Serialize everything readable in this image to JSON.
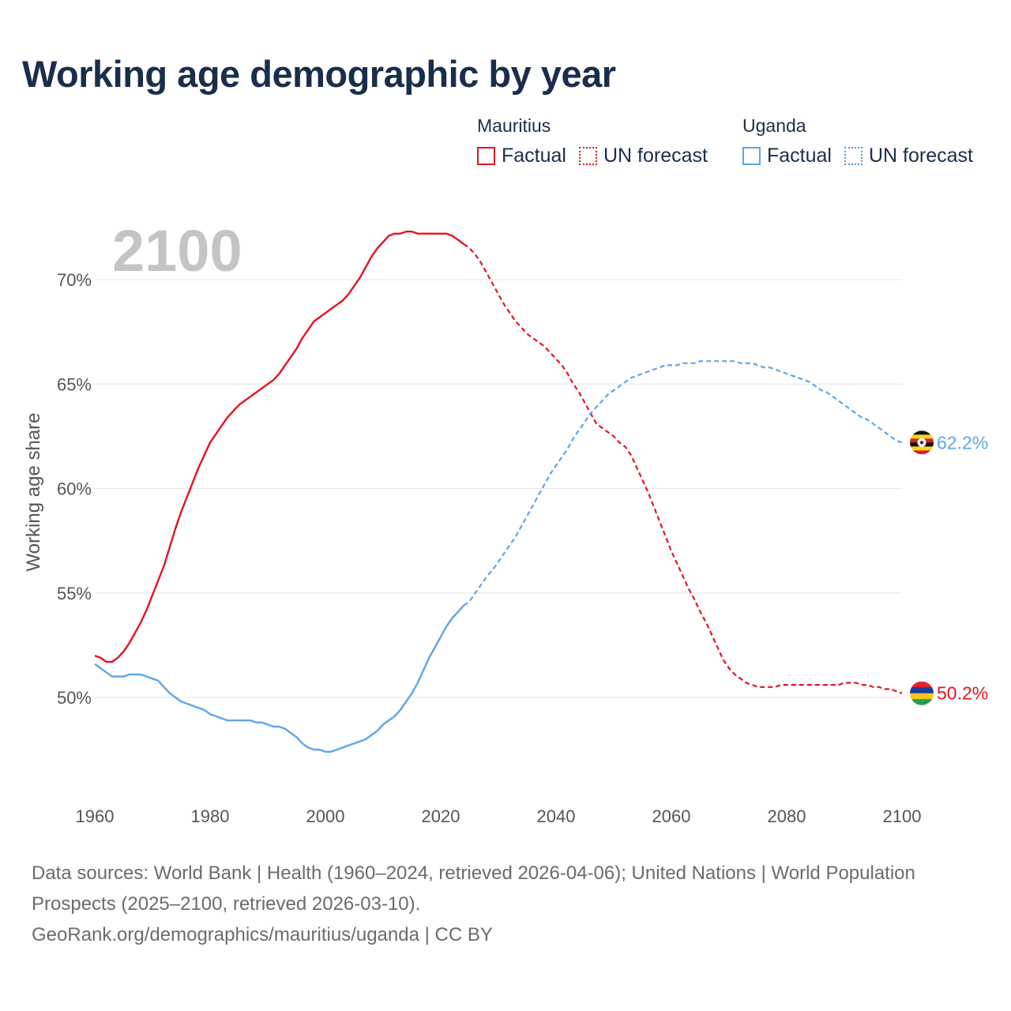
{
  "title": "Working age demographic by year",
  "legend": {
    "groups": [
      {
        "country": "Mauritius",
        "factual_label": "Factual",
        "forecast_label": "UN forecast"
      },
      {
        "country": "Uganda",
        "factual_label": "Factual",
        "forecast_label": "UN forecast"
      }
    ]
  },
  "year_label": "2100",
  "footer": {
    "sources": "Data sources: World Bank | Health (1960–2024, retrieved 2026-04-06); United Nations | World Population Prospects (2025–2100, retrieved 2026-03-10).",
    "link": "GeoRank.org/demographics/mauritius/uganda | CC BY"
  },
  "colors": {
    "mauritius": "#e8121d",
    "uganda": "#5da5e8",
    "grid": "#e6e6e6",
    "axis_text": "#555555",
    "year_label": "#c4c4c4"
  },
  "chart_data": {
    "type": "line",
    "title": "Working age demographic by year",
    "xlabel": "",
    "ylabel": "Working age share",
    "xlim": [
      1960,
      2100
    ],
    "ylim": [
      45.5,
      72.5
    ],
    "x_ticks": [
      1960,
      1980,
      2000,
      2020,
      2040,
      2060,
      2080,
      2100
    ],
    "y_ticks": [
      {
        "value": 50,
        "label": "50%"
      },
      {
        "value": 55,
        "label": "55%"
      },
      {
        "value": 60,
        "label": "60%"
      },
      {
        "value": 65,
        "label": "65%"
      },
      {
        "value": 70,
        "label": "70%"
      }
    ],
    "forecast_start": 2024,
    "series": [
      {
        "name": "Mauritius",
        "color": "#e8121d",
        "end_label": "50.2%",
        "points": [
          [
            1960,
            52.0
          ],
          [
            1961,
            51.9
          ],
          [
            1962,
            51.7
          ],
          [
            1963,
            51.7
          ],
          [
            1964,
            51.9
          ],
          [
            1965,
            52.2
          ],
          [
            1966,
            52.6
          ],
          [
            1967,
            53.1
          ],
          [
            1968,
            53.6
          ],
          [
            1969,
            54.2
          ],
          [
            1970,
            54.9
          ],
          [
            1971,
            55.6
          ],
          [
            1972,
            56.3
          ],
          [
            1973,
            57.2
          ],
          [
            1974,
            58.1
          ],
          [
            1975,
            58.9
          ],
          [
            1976,
            59.6
          ],
          [
            1977,
            60.3
          ],
          [
            1978,
            61.0
          ],
          [
            1979,
            61.6
          ],
          [
            1980,
            62.2
          ],
          [
            1981,
            62.6
          ],
          [
            1982,
            63.0
          ],
          [
            1983,
            63.4
          ],
          [
            1984,
            63.7
          ],
          [
            1985,
            64.0
          ],
          [
            1986,
            64.2
          ],
          [
            1987,
            64.4
          ],
          [
            1988,
            64.6
          ],
          [
            1989,
            64.8
          ],
          [
            1990,
            65.0
          ],
          [
            1991,
            65.2
          ],
          [
            1992,
            65.5
          ],
          [
            1993,
            65.9
          ],
          [
            1994,
            66.3
          ],
          [
            1995,
            66.7
          ],
          [
            1996,
            67.2
          ],
          [
            1997,
            67.6
          ],
          [
            1998,
            68.0
          ],
          [
            1999,
            68.2
          ],
          [
            2000,
            68.4
          ],
          [
            2001,
            68.6
          ],
          [
            2002,
            68.8
          ],
          [
            2003,
            69.0
          ],
          [
            2004,
            69.3
          ],
          [
            2005,
            69.7
          ],
          [
            2006,
            70.1
          ],
          [
            2007,
            70.6
          ],
          [
            2008,
            71.1
          ],
          [
            2009,
            71.5
          ],
          [
            2010,
            71.8
          ],
          [
            2011,
            72.1
          ],
          [
            2012,
            72.2
          ],
          [
            2013,
            72.2
          ],
          [
            2014,
            72.3
          ],
          [
            2015,
            72.3
          ],
          [
            2016,
            72.2
          ],
          [
            2017,
            72.2
          ],
          [
            2018,
            72.2
          ],
          [
            2019,
            72.2
          ],
          [
            2020,
            72.2
          ],
          [
            2021,
            72.2
          ],
          [
            2022,
            72.1
          ],
          [
            2023,
            71.9
          ],
          [
            2024,
            71.7
          ],
          [
            2025,
            71.5
          ],
          [
            2026,
            71.2
          ],
          [
            2027,
            70.8
          ],
          [
            2028,
            70.3
          ],
          [
            2029,
            69.8
          ],
          [
            2030,
            69.3
          ],
          [
            2031,
            68.8
          ],
          [
            2032,
            68.4
          ],
          [
            2033,
            68.0
          ],
          [
            2034,
            67.7
          ],
          [
            2035,
            67.4
          ],
          [
            2036,
            67.2
          ],
          [
            2037,
            67.0
          ],
          [
            2038,
            66.8
          ],
          [
            2039,
            66.5
          ],
          [
            2040,
            66.2
          ],
          [
            2041,
            65.9
          ],
          [
            2042,
            65.5
          ],
          [
            2043,
            65.0
          ],
          [
            2044,
            64.6
          ],
          [
            2045,
            64.1
          ],
          [
            2046,
            63.6
          ],
          [
            2047,
            63.1
          ],
          [
            2048,
            62.9
          ],
          [
            2049,
            62.7
          ],
          [
            2050,
            62.5
          ],
          [
            2051,
            62.2
          ],
          [
            2052,
            62.0
          ],
          [
            2053,
            61.6
          ],
          [
            2054,
            61.0
          ],
          [
            2055,
            60.4
          ],
          [
            2056,
            59.8
          ],
          [
            2057,
            59.1
          ],
          [
            2058,
            58.4
          ],
          [
            2059,
            57.7
          ],
          [
            2060,
            57.0
          ],
          [
            2061,
            56.4
          ],
          [
            2062,
            55.8
          ],
          [
            2063,
            55.2
          ],
          [
            2064,
            54.7
          ],
          [
            2065,
            54.1
          ],
          [
            2066,
            53.6
          ],
          [
            2067,
            53.0
          ],
          [
            2068,
            52.4
          ],
          [
            2069,
            51.8
          ],
          [
            2070,
            51.4
          ],
          [
            2071,
            51.1
          ],
          [
            2072,
            50.9
          ],
          [
            2073,
            50.7
          ],
          [
            2074,
            50.6
          ],
          [
            2075,
            50.5
          ],
          [
            2076,
            50.5
          ],
          [
            2077,
            50.5
          ],
          [
            2078,
            50.5
          ],
          [
            2079,
            50.6
          ],
          [
            2080,
            50.6
          ],
          [
            2081,
            50.6
          ],
          [
            2082,
            50.6
          ],
          [
            2083,
            50.6
          ],
          [
            2084,
            50.6
          ],
          [
            2085,
            50.6
          ],
          [
            2086,
            50.6
          ],
          [
            2087,
            50.6
          ],
          [
            2088,
            50.6
          ],
          [
            2089,
            50.6
          ],
          [
            2090,
            50.7
          ],
          [
            2091,
            50.7
          ],
          [
            2092,
            50.7
          ],
          [
            2093,
            50.6
          ],
          [
            2094,
            50.6
          ],
          [
            2095,
            50.5
          ],
          [
            2096,
            50.5
          ],
          [
            2097,
            50.4
          ],
          [
            2098,
            50.4
          ],
          [
            2099,
            50.3
          ],
          [
            2100,
            50.2
          ]
        ]
      },
      {
        "name": "Uganda",
        "color": "#5da5e8",
        "end_label": "62.2%",
        "points": [
          [
            1960,
            51.6
          ],
          [
            1961,
            51.4
          ],
          [
            1962,
            51.2
          ],
          [
            1963,
            51.0
          ],
          [
            1964,
            51.0
          ],
          [
            1965,
            51.0
          ],
          [
            1966,
            51.1
          ],
          [
            1967,
            51.1
          ],
          [
            1968,
            51.1
          ],
          [
            1969,
            51.0
          ],
          [
            1970,
            50.9
          ],
          [
            1971,
            50.8
          ],
          [
            1972,
            50.5
          ],
          [
            1973,
            50.2
          ],
          [
            1974,
            50.0
          ],
          [
            1975,
            49.8
          ],
          [
            1976,
            49.7
          ],
          [
            1977,
            49.6
          ],
          [
            1978,
            49.5
          ],
          [
            1979,
            49.4
          ],
          [
            1980,
            49.2
          ],
          [
            1981,
            49.1
          ],
          [
            1982,
            49.0
          ],
          [
            1983,
            48.9
          ],
          [
            1984,
            48.9
          ],
          [
            1985,
            48.9
          ],
          [
            1986,
            48.9
          ],
          [
            1987,
            48.9
          ],
          [
            1988,
            48.8
          ],
          [
            1989,
            48.8
          ],
          [
            1990,
            48.7
          ],
          [
            1991,
            48.6
          ],
          [
            1992,
            48.6
          ],
          [
            1993,
            48.5
          ],
          [
            1994,
            48.3
          ],
          [
            1995,
            48.1
          ],
          [
            1996,
            47.8
          ],
          [
            1997,
            47.6
          ],
          [
            1998,
            47.5
          ],
          [
            1999,
            47.5
          ],
          [
            2000,
            47.4
          ],
          [
            2001,
            47.4
          ],
          [
            2002,
            47.5
          ],
          [
            2003,
            47.6
          ],
          [
            2004,
            47.7
          ],
          [
            2005,
            47.8
          ],
          [
            2006,
            47.9
          ],
          [
            2007,
            48.0
          ],
          [
            2008,
            48.2
          ],
          [
            2009,
            48.4
          ],
          [
            2010,
            48.7
          ],
          [
            2011,
            48.9
          ],
          [
            2012,
            49.1
          ],
          [
            2013,
            49.4
          ],
          [
            2014,
            49.8
          ],
          [
            2015,
            50.2
          ],
          [
            2016,
            50.7
          ],
          [
            2017,
            51.3
          ],
          [
            2018,
            51.9
          ],
          [
            2019,
            52.4
          ],
          [
            2020,
            52.9
          ],
          [
            2021,
            53.4
          ],
          [
            2022,
            53.8
          ],
          [
            2023,
            54.1
          ],
          [
            2024,
            54.4
          ],
          [
            2025,
            54.6
          ],
          [
            2026,
            55.0
          ],
          [
            2027,
            55.4
          ],
          [
            2028,
            55.8
          ],
          [
            2029,
            56.1
          ],
          [
            2030,
            56.5
          ],
          [
            2031,
            56.9
          ],
          [
            2032,
            57.3
          ],
          [
            2033,
            57.7
          ],
          [
            2034,
            58.2
          ],
          [
            2035,
            58.7
          ],
          [
            2036,
            59.2
          ],
          [
            2037,
            59.7
          ],
          [
            2038,
            60.2
          ],
          [
            2039,
            60.7
          ],
          [
            2040,
            61.1
          ],
          [
            2041,
            61.5
          ],
          [
            2042,
            61.9
          ],
          [
            2043,
            62.4
          ],
          [
            2044,
            62.8
          ],
          [
            2045,
            63.2
          ],
          [
            2046,
            63.6
          ],
          [
            2047,
            63.9
          ],
          [
            2048,
            64.2
          ],
          [
            2049,
            64.5
          ],
          [
            2050,
            64.7
          ],
          [
            2051,
            64.9
          ],
          [
            2052,
            65.1
          ],
          [
            2053,
            65.3
          ],
          [
            2054,
            65.4
          ],
          [
            2055,
            65.5
          ],
          [
            2056,
            65.6
          ],
          [
            2057,
            65.7
          ],
          [
            2058,
            65.8
          ],
          [
            2059,
            65.9
          ],
          [
            2060,
            65.9
          ],
          [
            2061,
            65.9
          ],
          [
            2062,
            66.0
          ],
          [
            2063,
            66.0
          ],
          [
            2064,
            66.0
          ],
          [
            2065,
            66.1
          ],
          [
            2066,
            66.1
          ],
          [
            2067,
            66.1
          ],
          [
            2068,
            66.1
          ],
          [
            2069,
            66.1
          ],
          [
            2070,
            66.1
          ],
          [
            2071,
            66.1
          ],
          [
            2072,
            66.0
          ],
          [
            2073,
            66.0
          ],
          [
            2074,
            66.0
          ],
          [
            2075,
            65.9
          ],
          [
            2076,
            65.8
          ],
          [
            2077,
            65.8
          ],
          [
            2078,
            65.7
          ],
          [
            2079,
            65.6
          ],
          [
            2080,
            65.5
          ],
          [
            2081,
            65.4
          ],
          [
            2082,
            65.3
          ],
          [
            2083,
            65.2
          ],
          [
            2084,
            65.1
          ],
          [
            2085,
            64.9
          ],
          [
            2086,
            64.7
          ],
          [
            2087,
            64.6
          ],
          [
            2088,
            64.4
          ],
          [
            2089,
            64.2
          ],
          [
            2090,
            64.0
          ],
          [
            2091,
            63.8
          ],
          [
            2092,
            63.6
          ],
          [
            2093,
            63.4
          ],
          [
            2094,
            63.3
          ],
          [
            2095,
            63.1
          ],
          [
            2096,
            62.9
          ],
          [
            2097,
            62.7
          ],
          [
            2098,
            62.5
          ],
          [
            2099,
            62.3
          ],
          [
            2100,
            62.2
          ]
        ]
      }
    ]
  }
}
